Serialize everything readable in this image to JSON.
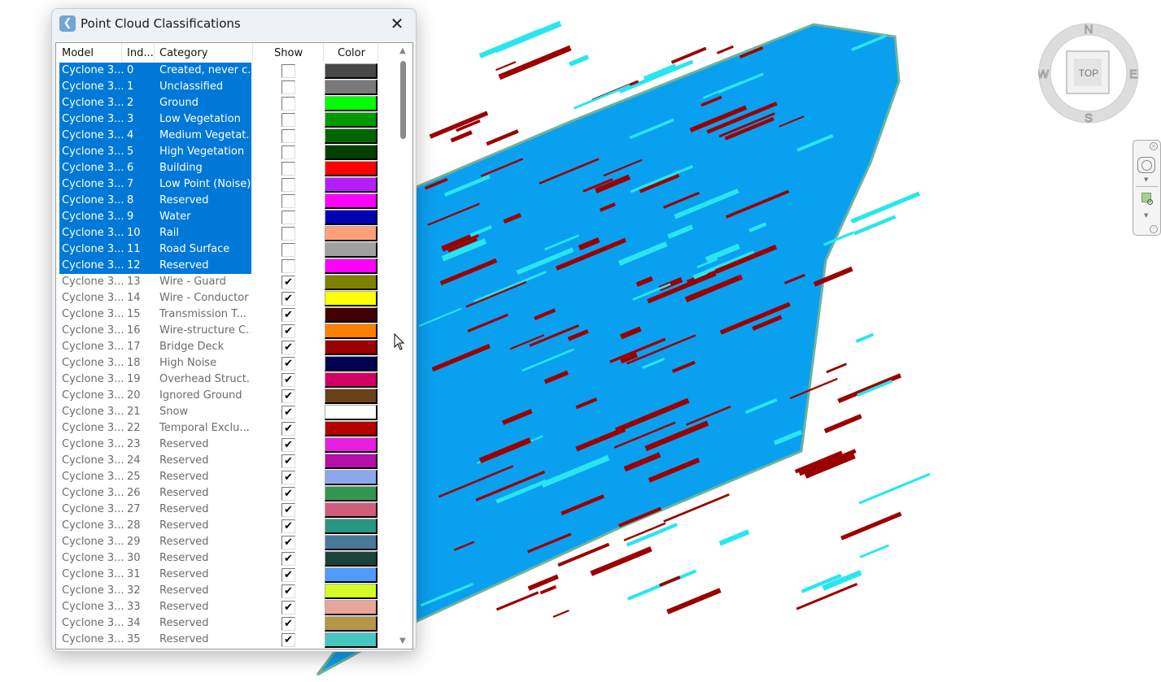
{
  "dialog": {
    "title": "Point Cloud Classifications",
    "close_icon": "close-icon",
    "columns": [
      "Model",
      "Ind...",
      "Category",
      "Show",
      "Color"
    ],
    "rows": [
      {
        "model": "Cyclone 3...",
        "index": "0",
        "category": "Created, never c...",
        "show": false,
        "color": "#484848",
        "selected": true
      },
      {
        "model": "Cyclone 3...",
        "index": "1",
        "category": "Unclassified",
        "show": false,
        "color": "#7a7a7a",
        "selected": true
      },
      {
        "model": "Cyclone 3...",
        "index": "2",
        "category": "Ground",
        "show": false,
        "color": "#00ff00",
        "selected": true
      },
      {
        "model": "Cyclone 3...",
        "index": "3",
        "category": "Low Vegetation",
        "show": false,
        "color": "#009900",
        "selected": true
      },
      {
        "model": "Cyclone 3...",
        "index": "4",
        "category": "Medium Vegetat...",
        "show": false,
        "color": "#006600",
        "selected": true
      },
      {
        "model": "Cyclone 3...",
        "index": "5",
        "category": "High Vegetation",
        "show": false,
        "color": "#004000",
        "selected": true
      },
      {
        "model": "Cyclone 3...",
        "index": "6",
        "category": "Building",
        "show": false,
        "color": "#ff0000",
        "selected": true
      },
      {
        "model": "Cyclone 3...",
        "index": "7",
        "category": "Low Point (Noise)",
        "show": false,
        "color": "#b41eff",
        "selected": true
      },
      {
        "model": "Cyclone 3...",
        "index": "8",
        "category": "Reserved",
        "show": false,
        "color": "#ff00ff",
        "selected": true
      },
      {
        "model": "Cyclone 3...",
        "index": "9",
        "category": "Water",
        "show": false,
        "color": "#0000b4",
        "selected": true
      },
      {
        "model": "Cyclone 3...",
        "index": "10",
        "category": "Rail",
        "show": false,
        "color": "#ffa078",
        "selected": true
      },
      {
        "model": "Cyclone 3...",
        "index": "11",
        "category": "Road Surface",
        "show": false,
        "color": "#a0a0a0",
        "selected": true
      },
      {
        "model": "Cyclone 3...",
        "index": "12",
        "category": "Reserved",
        "show": false,
        "color": "#ff00ff",
        "selected": true
      },
      {
        "model": "Cyclone 3...",
        "index": "13",
        "category": "Wire - Guard",
        "show": true,
        "color": "#808000",
        "selected": false
      },
      {
        "model": "Cyclone 3...",
        "index": "14",
        "category": "Wire - Conductor",
        "show": true,
        "color": "#ffff00",
        "selected": false
      },
      {
        "model": "Cyclone 3...",
        "index": "15",
        "category": "Transmission T...",
        "show": true,
        "color": "#400000",
        "selected": false
      },
      {
        "model": "Cyclone 3...",
        "index": "16",
        "category": "Wire-structure C...",
        "show": true,
        "color": "#ff8000",
        "selected": false
      },
      {
        "model": "Cyclone 3...",
        "index": "17",
        "category": "Bridge Deck",
        "show": true,
        "color": "#9a0000",
        "selected": false
      },
      {
        "model": "Cyclone 3...",
        "index": "18",
        "category": "High Noise",
        "show": true,
        "color": "#000050",
        "selected": false
      },
      {
        "model": "Cyclone 3...",
        "index": "19",
        "category": "Overhead Struct...",
        "show": true,
        "color": "#d20064",
        "selected": false
      },
      {
        "model": "Cyclone 3...",
        "index": "20",
        "category": "Ignored Ground",
        "show": true,
        "color": "#6a4019",
        "selected": false
      },
      {
        "model": "Cyclone 3...",
        "index": "21",
        "category": "Snow",
        "show": true,
        "color": "#ffffff",
        "selected": false
      },
      {
        "model": "Cyclone 3...",
        "index": "22",
        "category": "Temporal Exclu...",
        "show": true,
        "color": "#b40000",
        "selected": false
      },
      {
        "model": "Cyclone 3...",
        "index": "23",
        "category": "Reserved",
        "show": true,
        "color": "#e81ee0",
        "selected": false
      },
      {
        "model": "Cyclone 3...",
        "index": "24",
        "category": "Reserved",
        "show": true,
        "color": "#b40fa8",
        "selected": false
      },
      {
        "model": "Cyclone 3...",
        "index": "25",
        "category": "Reserved",
        "show": true,
        "color": "#8ca8ec",
        "selected": false
      },
      {
        "model": "Cyclone 3...",
        "index": "26",
        "category": "Reserved",
        "show": true,
        "color": "#329650",
        "selected": false
      },
      {
        "model": "Cyclone 3...",
        "index": "27",
        "category": "Reserved",
        "show": true,
        "color": "#d05e7a",
        "selected": false
      },
      {
        "model": "Cyclone 3...",
        "index": "28",
        "category": "Reserved",
        "show": true,
        "color": "#289682",
        "selected": false
      },
      {
        "model": "Cyclone 3...",
        "index": "29",
        "category": "Reserved",
        "show": true,
        "color": "#4a7898",
        "selected": false
      },
      {
        "model": "Cyclone 3...",
        "index": "30",
        "category": "Reserved",
        "show": true,
        "color": "#1c423e",
        "selected": false
      },
      {
        "model": "Cyclone 3...",
        "index": "31",
        "category": "Reserved",
        "show": true,
        "color": "#509bff",
        "selected": false
      },
      {
        "model": "Cyclone 3...",
        "index": "32",
        "category": "Reserved",
        "show": true,
        "color": "#d4fa28",
        "selected": false
      },
      {
        "model": "Cyclone 3...",
        "index": "33",
        "category": "Reserved",
        "show": true,
        "color": "#e8a698",
        "selected": false
      },
      {
        "model": "Cyclone 3...",
        "index": "34",
        "category": "Reserved",
        "show": true,
        "color": "#b49646",
        "selected": false
      },
      {
        "model": "Cyclone 3...",
        "index": "35",
        "category": "Reserved",
        "show": true,
        "color": "#46c6c0",
        "selected": false
      }
    ]
  },
  "viewcube": {
    "face": "TOP",
    "north": "N",
    "south": "S",
    "east": "E",
    "west": "W"
  },
  "colors": {
    "selection": "#0078d7",
    "cloud_main": "#0aa0f0",
    "cloud_building": "#9a0000",
    "cloud_cyan": "#28e6f0"
  }
}
